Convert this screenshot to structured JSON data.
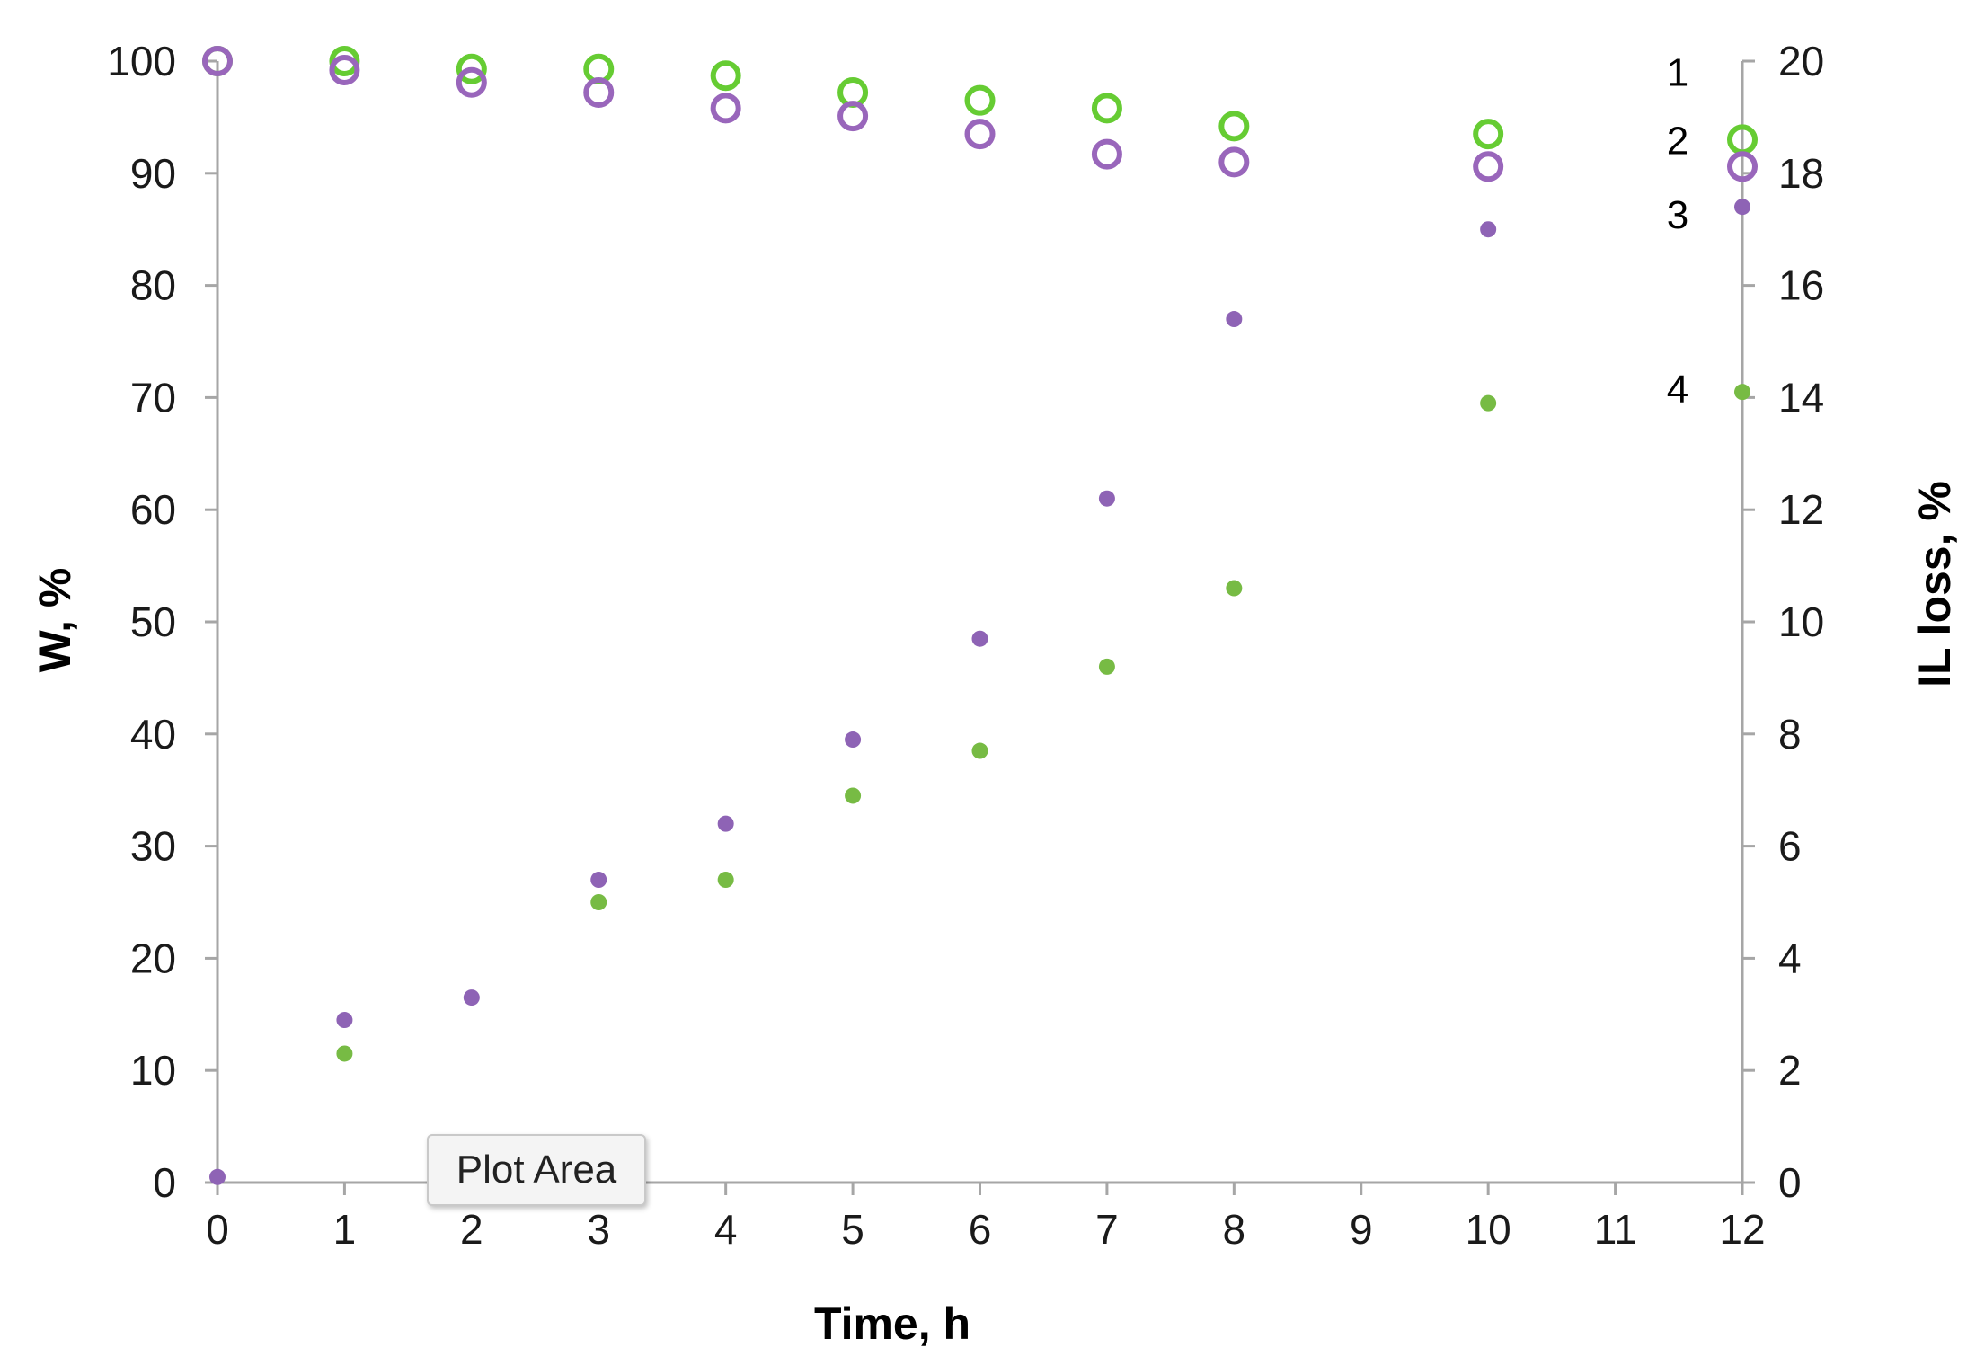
{
  "tooltip": {
    "text": "Plot Area"
  },
  "chart_data": {
    "type": "scatter",
    "xlabel": "Time, h",
    "ylabel": "W, %",
    "y2label": "IL loss, %",
    "xlim": [
      0,
      12
    ],
    "ylim": [
      0,
      100
    ],
    "y2lim": [
      0,
      20
    ],
    "xticks": [
      0,
      1,
      2,
      3,
      4,
      5,
      6,
      7,
      8,
      9,
      10,
      11,
      12
    ],
    "yticks": [
      0,
      10,
      20,
      30,
      40,
      50,
      60,
      70,
      80,
      90,
      100
    ],
    "y2ticks": [
      0,
      2,
      4,
      6,
      8,
      10,
      12,
      14,
      16,
      18,
      20
    ],
    "grid": false,
    "colors": {
      "green": "#66cc33",
      "purple": "#9966bb",
      "green_filled": "#77bb44",
      "purple_filled": "#8e63b5",
      "axis": "#a6a6a6"
    },
    "series": [
      {
        "name": "1",
        "axis": "left",
        "marker": "open-circle",
        "color": "green",
        "x": [
          0,
          1,
          2,
          3,
          4,
          5,
          6,
          7,
          8,
          10,
          12
        ],
        "y": [
          100,
          100,
          99.3,
          99.3,
          98.7,
          97.2,
          96.5,
          95.8,
          94.2,
          93.5,
          93.0
        ]
      },
      {
        "name": "2",
        "axis": "left",
        "marker": "open-circle",
        "color": "purple",
        "x": [
          0,
          1,
          2,
          3,
          4,
          5,
          6,
          7,
          8,
          10,
          12
        ],
        "y": [
          100,
          99.2,
          98.1,
          97.2,
          95.8,
          95.1,
          93.5,
          91.7,
          91.0,
          90.6,
          90.6
        ]
      },
      {
        "name": "3",
        "axis": "right",
        "marker": "filled-circle",
        "color": "purple_filled",
        "x": [
          0,
          1,
          2,
          3,
          4,
          5,
          6,
          7,
          8,
          10,
          12
        ],
        "y": [
          0.1,
          2.9,
          3.3,
          5.4,
          6.4,
          7.9,
          9.7,
          12.2,
          15.4,
          17.0,
          17.4
        ]
      },
      {
        "name": "4",
        "axis": "right",
        "marker": "filled-circle",
        "color": "green_filled",
        "x": [
          1,
          3,
          4,
          5,
          6,
          7,
          8,
          10,
          12
        ],
        "y": [
          2.3,
          5.0,
          5.4,
          6.9,
          7.7,
          9.2,
          10.6,
          13.9,
          14.1
        ]
      }
    ]
  }
}
